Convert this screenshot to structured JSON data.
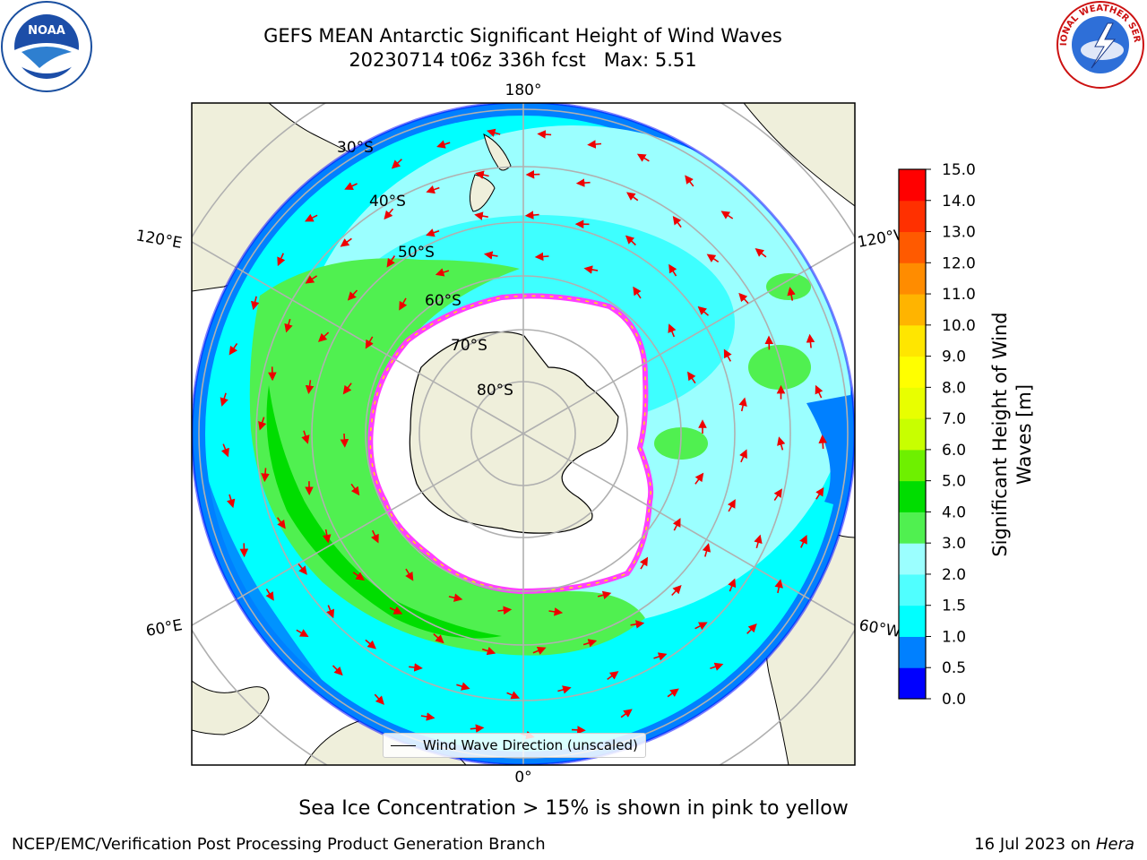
{
  "header": {
    "title_line1": "GEFS MEAN Antarctic Significant Height of Wind Waves",
    "title_line2": "20230714 t06z 336h fcst   Max: 5.51"
  },
  "logos": {
    "left": {
      "icon": "noaa-logo-icon",
      "text": "NOAA"
    },
    "right": {
      "icon": "nws-logo-icon",
      "text": "NATIONAL WEATHER SERVICE"
    }
  },
  "map": {
    "projection": "south-polar-stereographic",
    "lon_labels": {
      "top": "180°",
      "bottom": "0°",
      "upper_left": "120°E",
      "upper_right": "120°W",
      "lower_left": "60°E",
      "lower_right": "60°W"
    },
    "lat_labels": [
      "30°S",
      "40°S",
      "50°S",
      "60°S",
      "70°S",
      "80°S"
    ],
    "legend": "Wind Wave Direction (unscaled)",
    "colors": {
      "land": "#efefdb",
      "ice": "#ffffff",
      "ocean_low": "#00ffff",
      "ocean_mid": "#50f050",
      "ocean_edge": "#0080ff",
      "ice_edge": "#ff40ff",
      "arrows": "#ff0000"
    }
  },
  "colorbar": {
    "label_line1": "Significant Height of Wind",
    "label_line2": "Waves [m]",
    "ticks": [
      "0.0",
      "0.5",
      "1.0",
      "1.5",
      "2.0",
      "3.0",
      "4.0",
      "5.0",
      "6.0",
      "7.0",
      "8.0",
      "9.0",
      "10.0",
      "11.0",
      "12.0",
      "13.0",
      "14.0",
      "15.0"
    ],
    "colors": [
      "#0000ff",
      "#0080ff",
      "#00ffff",
      "#50ffff",
      "#9bffff",
      "#50f050",
      "#00dd00",
      "#6ef000",
      "#c8ff00",
      "#e8ff00",
      "#ffff00",
      "#ffe600",
      "#ffb400",
      "#ff8c00",
      "#ff5a00",
      "#ff3000",
      "#ff0000"
    ]
  },
  "footer": {
    "note": "Sea Ice Concentration > 15% is shown in pink to yellow",
    "left": "NCEP/EMC/Verification Post Processing Product Generation Branch",
    "right_date": "16 Jul 2023 on ",
    "right_machine": "Hera"
  }
}
